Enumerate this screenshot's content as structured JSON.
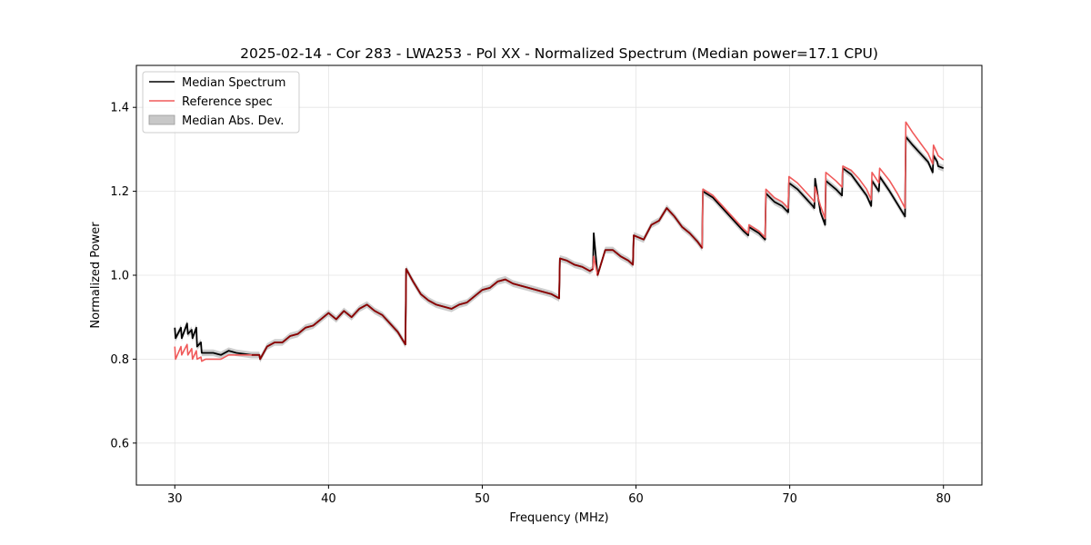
{
  "chart_data": {
    "type": "line",
    "title": "2025-02-14 - Cor 283 - LWA253 - Pol XX - Normalized Spectrum (Median power=17.1 CPU)",
    "xlabel": "Frequency (MHz)",
    "ylabel": "Normalized Power",
    "xlim": [
      27.5,
      82.5
    ],
    "ylim": [
      0.5,
      1.5
    ],
    "xticks": [
      30,
      40,
      50,
      60,
      70,
      80
    ],
    "yticks": [
      0.6,
      0.8,
      1.0,
      1.2,
      1.4
    ],
    "xtick_labels": [
      "30",
      "40",
      "50",
      "60",
      "70",
      "80"
    ],
    "ytick_labels": [
      "0.6",
      "0.8",
      "1.0",
      "1.2",
      "1.4"
    ],
    "grid": true,
    "legend_position": "top-left",
    "legend": [
      "Median Spectrum",
      "Reference spec",
      "Median Abs. Dev."
    ],
    "colors": {
      "median": "#000000",
      "reference": "#f05a5a",
      "reference_overlap": "#8b0000",
      "mad": "#c8c8c8"
    },
    "mad_halfwidth": 0.008,
    "series": [
      {
        "name": "Median Spectrum",
        "x": [
          30.0,
          30.05,
          30.4,
          30.45,
          30.8,
          30.85,
          31.1,
          31.15,
          31.4,
          31.45,
          31.7,
          31.75,
          32.0,
          32.5,
          33.0,
          33.5,
          34.0,
          35.0,
          35.5,
          35.55,
          36.0,
          36.5,
          37.0,
          37.5,
          38.0,
          38.5,
          39.0,
          39.5,
          40.0,
          40.5,
          41.0,
          41.5,
          42.0,
          42.5,
          43.0,
          43.5,
          44.0,
          44.5,
          45.0,
          45.05,
          45.5,
          46.0,
          46.5,
          47.0,
          47.5,
          48.0,
          48.5,
          49.0,
          49.5,
          50.0,
          50.5,
          51.0,
          51.5,
          52.0,
          52.5,
          53.0,
          53.5,
          54.0,
          54.5,
          55.0,
          55.05,
          55.5,
          56.0,
          56.5,
          57.0,
          57.2,
          57.25,
          57.5,
          58.0,
          58.5,
          59.0,
          59.5,
          59.8,
          59.85,
          60.5,
          61.0,
          61.5,
          62.0,
          62.5,
          63.0,
          63.5,
          64.0,
          64.3,
          64.35,
          65.0,
          65.5,
          66.0,
          66.5,
          67.0,
          67.3,
          67.35,
          68.0,
          68.4,
          68.45,
          69.0,
          69.5,
          69.9,
          69.95,
          70.5,
          71.0,
          71.5,
          71.6,
          71.65,
          72.0,
          72.3,
          72.35,
          73.0,
          73.4,
          73.45,
          74.0,
          74.5,
          75.0,
          75.3,
          75.35,
          75.8,
          75.85,
          76.5,
          77.0,
          77.5,
          77.55,
          78.0,
          78.5,
          79.0,
          79.3,
          79.35,
          79.6,
          79.65,
          80.0
        ],
        "values": [
          0.875,
          0.85,
          0.875,
          0.85,
          0.885,
          0.86,
          0.87,
          0.85,
          0.875,
          0.83,
          0.84,
          0.815,
          0.815,
          0.815,
          0.81,
          0.82,
          0.815,
          0.81,
          0.81,
          0.8,
          0.83,
          0.84,
          0.84,
          0.855,
          0.86,
          0.875,
          0.88,
          0.895,
          0.91,
          0.895,
          0.915,
          0.9,
          0.92,
          0.93,
          0.915,
          0.905,
          0.885,
          0.865,
          0.835,
          1.015,
          0.985,
          0.955,
          0.94,
          0.93,
          0.925,
          0.92,
          0.93,
          0.935,
          0.95,
          0.965,
          0.97,
          0.985,
          0.99,
          0.98,
          0.975,
          0.97,
          0.965,
          0.96,
          0.955,
          0.945,
          1.04,
          1.035,
          1.025,
          1.02,
          1.01,
          1.015,
          1.1,
          1.0,
          1.06,
          1.06,
          1.045,
          1.035,
          1.025,
          1.095,
          1.085,
          1.12,
          1.13,
          1.16,
          1.14,
          1.115,
          1.1,
          1.08,
          1.065,
          1.2,
          1.185,
          1.165,
          1.145,
          1.125,
          1.105,
          1.095,
          1.115,
          1.1,
          1.085,
          1.195,
          1.175,
          1.165,
          1.15,
          1.22,
          1.205,
          1.185,
          1.165,
          1.16,
          1.23,
          1.15,
          1.12,
          1.225,
          1.205,
          1.19,
          1.255,
          1.24,
          1.215,
          1.19,
          1.165,
          1.225,
          1.2,
          1.235,
          1.2,
          1.17,
          1.14,
          1.33,
          1.31,
          1.29,
          1.27,
          1.245,
          1.285,
          1.27,
          1.26,
          1.255
        ]
      },
      {
        "name": "Reference spec",
        "x": [
          30.0,
          30.05,
          30.4,
          30.45,
          30.8,
          30.85,
          31.1,
          31.15,
          31.4,
          31.45,
          31.7,
          31.75,
          32.0,
          32.5,
          33.0,
          33.5,
          34.0,
          35.0,
          35.5,
          35.55,
          36.0,
          36.5,
          37.0,
          37.5,
          38.0,
          38.5,
          39.0,
          39.5,
          40.0,
          40.5,
          41.0,
          41.5,
          42.0,
          42.5,
          43.0,
          43.5,
          44.0,
          44.5,
          45.0,
          45.05,
          45.5,
          46.0,
          46.5,
          47.0,
          47.5,
          48.0,
          48.5,
          49.0,
          49.5,
          50.0,
          50.5,
          51.0,
          51.5,
          52.0,
          52.5,
          53.0,
          53.5,
          54.0,
          54.5,
          55.0,
          55.05,
          55.5,
          56.0,
          56.5,
          57.0,
          57.2,
          57.25,
          57.5,
          58.0,
          58.5,
          59.0,
          59.5,
          59.8,
          59.85,
          60.5,
          61.0,
          61.5,
          62.0,
          62.5,
          63.0,
          63.5,
          64.0,
          64.3,
          64.35,
          65.0,
          65.5,
          66.0,
          66.5,
          67.0,
          67.3,
          67.35,
          68.0,
          68.4,
          68.45,
          69.0,
          69.5,
          69.9,
          69.95,
          70.5,
          71.0,
          71.5,
          71.6,
          71.65,
          72.0,
          72.3,
          72.35,
          73.0,
          73.4,
          73.45,
          74.0,
          74.5,
          75.0,
          75.3,
          75.35,
          75.8,
          75.85,
          76.5,
          77.0,
          77.5,
          77.55,
          78.0,
          78.5,
          79.0,
          79.3,
          79.35,
          79.6,
          79.65,
          80.0
        ],
        "values": [
          0.83,
          0.8,
          0.83,
          0.81,
          0.835,
          0.81,
          0.825,
          0.8,
          0.82,
          0.8,
          0.805,
          0.795,
          0.8,
          0.8,
          0.8,
          0.81,
          0.81,
          0.81,
          0.81,
          0.8,
          0.83,
          0.84,
          0.84,
          0.855,
          0.86,
          0.875,
          0.88,
          0.895,
          0.91,
          0.895,
          0.915,
          0.9,
          0.92,
          0.93,
          0.915,
          0.905,
          0.885,
          0.865,
          0.835,
          1.015,
          0.985,
          0.955,
          0.94,
          0.93,
          0.925,
          0.92,
          0.93,
          0.935,
          0.95,
          0.965,
          0.97,
          0.985,
          0.99,
          0.98,
          0.975,
          0.97,
          0.965,
          0.96,
          0.955,
          0.945,
          1.04,
          1.035,
          1.025,
          1.02,
          1.01,
          1.015,
          1.045,
          1.0,
          1.06,
          1.06,
          1.045,
          1.035,
          1.025,
          1.095,
          1.085,
          1.12,
          1.13,
          1.16,
          1.14,
          1.115,
          1.1,
          1.08,
          1.065,
          1.205,
          1.19,
          1.17,
          1.15,
          1.13,
          1.11,
          1.1,
          1.12,
          1.105,
          1.09,
          1.205,
          1.185,
          1.175,
          1.16,
          1.235,
          1.22,
          1.2,
          1.18,
          1.175,
          1.21,
          1.165,
          1.135,
          1.245,
          1.225,
          1.21,
          1.26,
          1.25,
          1.23,
          1.205,
          1.18,
          1.245,
          1.22,
          1.255,
          1.225,
          1.195,
          1.16,
          1.365,
          1.34,
          1.315,
          1.29,
          1.265,
          1.31,
          1.29,
          1.285,
          1.275
        ]
      }
    ]
  }
}
